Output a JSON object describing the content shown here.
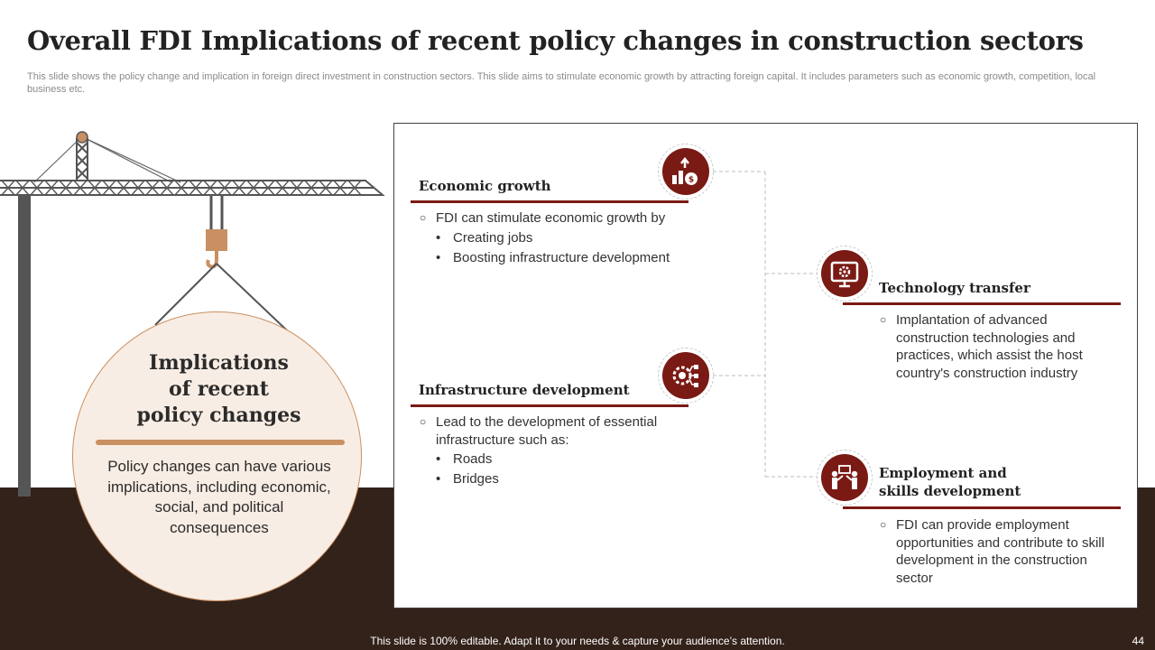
{
  "title": "Overall FDI Implications of recent policy changes in construction sectors",
  "subtitle": "This slide shows the policy change and implication in foreign direct investment in construction sectors. This slide aims to stimulate economic growth by attracting foreign capital. It includes parameters such as economic growth, competition, local business etc.",
  "center": {
    "heading": [
      "Implications",
      "of recent",
      "policy changes"
    ],
    "text": "Policy changes can have various implications, including economic, social, and political consequences"
  },
  "sections": [
    {
      "title": "Economic growth",
      "icon": "growth-money-icon",
      "main": "FDI can stimulate economic growth by",
      "items": [
        "Creating jobs",
        "Boosting infrastructure  development"
      ]
    },
    {
      "title": "Infrastructure development",
      "icon": "gear-network-icon",
      "main": "Lead to the development of essential infrastructure  such as:",
      "items": [
        "Roads",
        "Bridges"
      ]
    },
    {
      "title": "Technology transfer",
      "icon": "monitor-gear-icon",
      "main": "Implantation of advanced construction technologies and practices, which assist the host country's construction industry",
      "items": []
    },
    {
      "title_lines": [
        "Employment and",
        "skills development"
      ],
      "icon": "people-board-icon",
      "main": "FDI can provide employment opportunities and contribute to skill development in the construction sector",
      "items": []
    }
  ],
  "footer": "This slide is 100% editable. Adapt it to your needs & capture your audience’s attention.",
  "page_number": "44",
  "colors": {
    "accent": "#7a1a14",
    "tan": "#c99062",
    "ground": "#33221a",
    "circle_fill": "#f8ede4"
  }
}
